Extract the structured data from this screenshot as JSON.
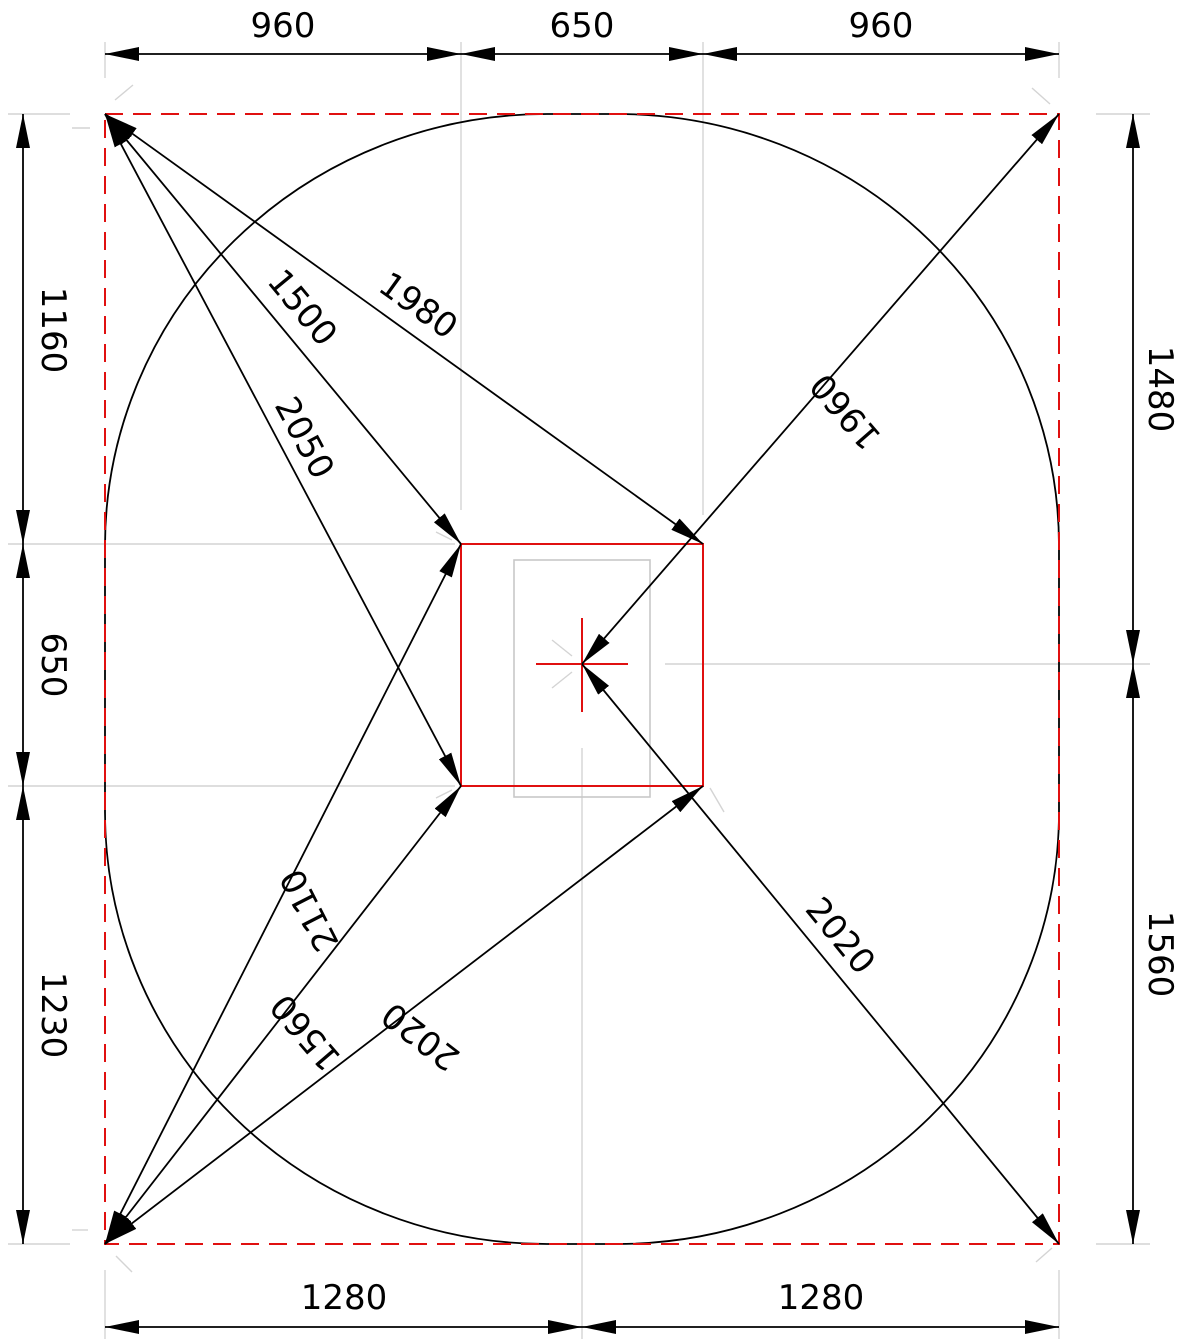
{
  "dimensions": {
    "top": [
      "960",
      "650",
      "960"
    ],
    "bottom": [
      "1280",
      "1280"
    ],
    "left": [
      "1160",
      "650",
      "1230"
    ],
    "right": [
      "1480",
      "1560"
    ]
  },
  "diagonals": {
    "tl_to_inner_tl": "1500",
    "tl_to_inner_tr": "1980",
    "tl_to_inner_bl": "2050",
    "tr_to_center": "1960",
    "bl_to_inner_tl": "2110",
    "bl_to_inner_bl": "1560",
    "bl_to_inner_br": "2020",
    "br_to_center": "2020"
  },
  "colors": {
    "outline": "#000000",
    "dimension": "#000000",
    "red": "#e01010",
    "guide": "#d4d4d4"
  }
}
